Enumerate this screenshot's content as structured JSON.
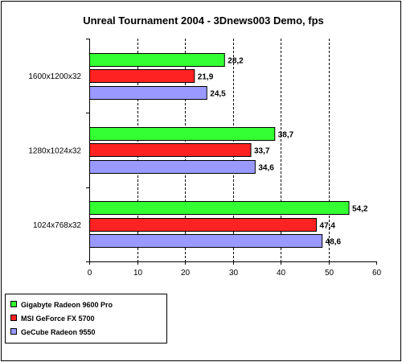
{
  "chart_data": {
    "type": "bar",
    "orientation": "horizontal",
    "title": "Unreal Tournament 2004 - 3Dnews003 Demo, fps",
    "categories": [
      "1600x1200x32",
      "1280x1024x32",
      "1024x768x32"
    ],
    "series": [
      {
        "name": "Gigabyte Radeon 9600 Pro",
        "color": "#33ff33",
        "values": [
          28.2,
          38.7,
          54.2
        ],
        "labels": [
          "28,2",
          "38,7",
          "54,2"
        ]
      },
      {
        "name": "MSI GeForce FX 5700",
        "color": "#ff2222",
        "values": [
          21.9,
          33.7,
          47.4
        ],
        "labels": [
          "21,9",
          "33,7",
          "47,4"
        ]
      },
      {
        "name": "GeCube Radeon 9550",
        "color": "#9999ff",
        "values": [
          24.5,
          34.6,
          48.6
        ],
        "labels": [
          "24,5",
          "34,6",
          "48,6"
        ]
      }
    ],
    "xlim": [
      0,
      60
    ],
    "ticks": [
      "0",
      "10",
      "20",
      "30",
      "40",
      "50",
      "60"
    ],
    "grid": "vertical dashed",
    "legend_position": "bottom-left"
  }
}
